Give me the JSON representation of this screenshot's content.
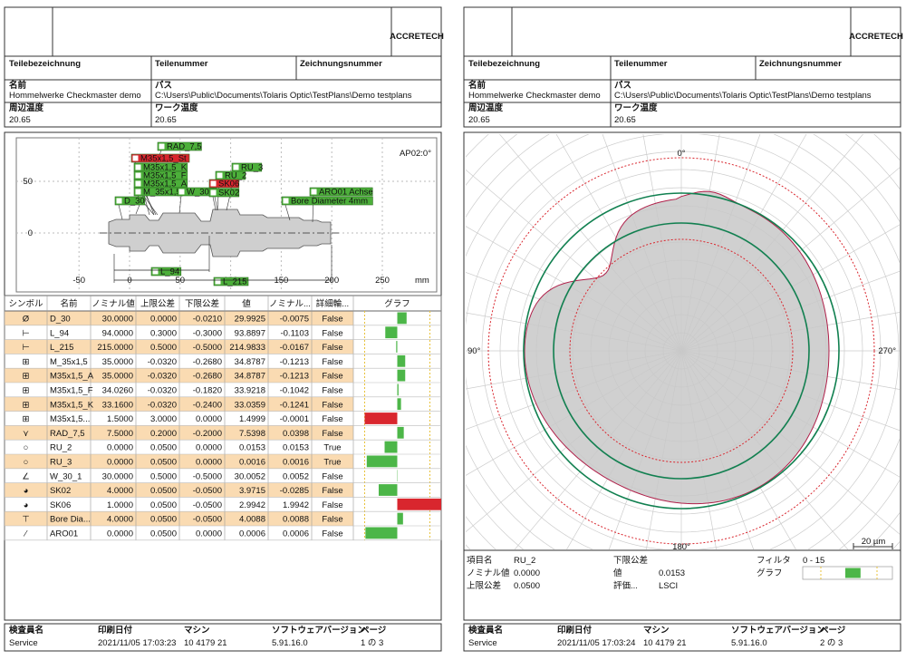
{
  "pages": [
    {
      "logo": "ACCRETECH",
      "header": {
        "cols": [
          "Teilebezeichnung",
          "Teilenummer",
          "Zeichnungsnummer"
        ],
        "name_label": "名前",
        "name": "Hommelwerke Checkmaster demo",
        "path_label": "パス",
        "path": "C:\\Users\\Public\\Documents\\Tolaris Optic\\TestPlans\\Demo testplans",
        "ambient_label": "周辺温度",
        "ambient": "20.65",
        "work_label": "ワーク温度",
        "work": "20.65"
      },
      "footer": {
        "labels": [
          "検査員名",
          "印刷日付",
          "マシン",
          "ソフトウェアバージョン",
          "ページ"
        ],
        "values": [
          "Service",
          "2021/11/05 17:03:23",
          "10 4179 21",
          "5.91.16.0",
          "1 の 3"
        ]
      }
    },
    {
      "logo": "ACCRETECH",
      "header": {
        "cols": [
          "Teilebezeichnung",
          "Teilenummer",
          "Zeichnungsnummer"
        ],
        "name_label": "名前",
        "name": "Hommelwerke Checkmaster demo",
        "path_label": "パス",
        "path": "C:\\Users\\Public\\Documents\\Tolaris Optic\\TestPlans\\Demo testplans",
        "ambient_label": "周辺温度",
        "ambient": "20.65",
        "work_label": "ワーク温度",
        "work": "20.65"
      },
      "footer": {
        "labels": [
          "検査員名",
          "印刷日付",
          "マシン",
          "ソフトウェアバージョン",
          "ページ"
        ],
        "values": [
          "Service",
          "2021/11/05 17:03:24",
          "10 4179 21",
          "5.91.16.0",
          "2 の 3"
        ]
      }
    }
  ],
  "drawing": {
    "view": "AP02:0°",
    "xticks": [
      -50,
      0,
      50,
      100,
      150,
      200,
      250
    ],
    "x_unit": "mm",
    "yticks": [
      0,
      50
    ],
    "labels": [
      {
        "text": "RAD_7,5",
        "color": "#4caf3a"
      },
      {
        "text": "M35x1,5_St",
        "color": "#d9262e"
      },
      {
        "text": "M35x1,5_K",
        "color": "#4caf3a"
      },
      {
        "text": "M35x1,5_F",
        "color": "#4caf3a"
      },
      {
        "text": "M35x1,5_A",
        "color": "#4caf3a"
      },
      {
        "text": "M_35x1,5",
        "color": "#4caf3a"
      },
      {
        "text": "W_30_1",
        "color": "#4caf3a"
      },
      {
        "text": "D_30",
        "color": "#4caf3a"
      },
      {
        "text": "RU_3",
        "color": "#4caf3a"
      },
      {
        "text": "RU_2",
        "color": "#4caf3a"
      },
      {
        "text": "SK06",
        "color": "#d9262e"
      },
      {
        "text": "SK02",
        "color": "#4caf3a"
      },
      {
        "text": "ARO01 Achse",
        "color": "#4caf3a"
      },
      {
        "text": "Bore Diameter 4mm",
        "color": "#4caf3a"
      },
      {
        "text": "L_94",
        "color": "#4caf3a"
      },
      {
        "text": "L_215",
        "color": "#4caf3a"
      }
    ]
  },
  "table": {
    "columns": [
      "シンボル",
      "名前",
      "ノミナル値",
      "上限公差",
      "下限公差",
      "値",
      "ノミナル...",
      "詳細輪...",
      "グラフ"
    ],
    "rows": [
      [
        "Ø",
        "D_30",
        "30.0000",
        "0.0000",
        "-0.0210",
        "29.9925",
        "-0.0075",
        "False"
      ],
      [
        "⊢",
        "L_94",
        "94.0000",
        "0.3000",
        "-0.3000",
        "93.8897",
        "-0.1103",
        "False"
      ],
      [
        "⊢",
        "L_215",
        "215.0000",
        "0.5000",
        "-0.5000",
        "214.9833",
        "-0.0167",
        "False"
      ],
      [
        "⊞",
        "M_35x1,5",
        "35.0000",
        "-0.0320",
        "-0.2680",
        "34.8787",
        "-0.1213",
        "False"
      ],
      [
        "⊞",
        "M35x1,5_A",
        "35.0000",
        "-0.0320",
        "-0.2680",
        "34.8787",
        "-0.1213",
        "False"
      ],
      [
        "⊞",
        "M35x1,5_F",
        "34.0260",
        "-0.0320",
        "-0.1820",
        "33.9218",
        "-0.1042",
        "False"
      ],
      [
        "⊞",
        "M35x1,5_K",
        "33.1600",
        "-0.0320",
        "-0.2400",
        "33.0359",
        "-0.1241",
        "False"
      ],
      [
        "⊞",
        "M35x1,5...",
        "1.5000",
        "3.0000",
        "0.0000",
        "1.4999",
        "-0.0001",
        "False"
      ],
      [
        "⋎",
        "RAD_7,5",
        "7.5000",
        "0.2000",
        "-0.2000",
        "7.5398",
        "0.0398",
        "False"
      ],
      [
        "○",
        "RU_2",
        "0.0000",
        "0.0500",
        "0.0000",
        "0.0153",
        "0.0153",
        "True"
      ],
      [
        "○",
        "RU_3",
        "0.0000",
        "0.0500",
        "0.0000",
        "0.0016",
        "0.0016",
        "True"
      ],
      [
        "∠",
        "W_30_1",
        "30.0000",
        "0.5000",
        "-0.5000",
        "30.0052",
        "0.0052",
        "False"
      ],
      [
        "◕",
        "SK02",
        "4.0000",
        "0.0500",
        "-0.0500",
        "3.9715",
        "-0.0285",
        "False"
      ],
      [
        "◕",
        "SK06",
        "1.0000",
        "0.0500",
        "-0.0500",
        "2.9942",
        "1.9942",
        "False"
      ],
      [
        "⊤",
        "Bore Dia...",
        "4.0000",
        "0.0500",
        "-0.0500",
        "4.0088",
        "0.0088",
        "False"
      ],
      [
        "∕",
        "ARO01",
        "0.0000",
        "0.0500",
        "0.0000",
        "0.0006",
        "0.0006",
        "False"
      ]
    ]
  },
  "polar": {
    "angles": [
      "0°",
      "90°",
      "180°",
      "270°"
    ],
    "scale": "20 µm",
    "info": {
      "item_label": "項目名",
      "item": "RU_2",
      "nominal_label": "ノミナル値",
      "nominal": "0.0000",
      "upper_label": "上限公差",
      "upper": "0.0500",
      "lower_label": "下限公差",
      "value_label": "値",
      "value": "0.0153",
      "eval_label": "評価...",
      "eval": "LSCI",
      "filter_label": "フィルタ",
      "filter": "0 - 15",
      "graph_label": "グラフ"
    }
  }
}
